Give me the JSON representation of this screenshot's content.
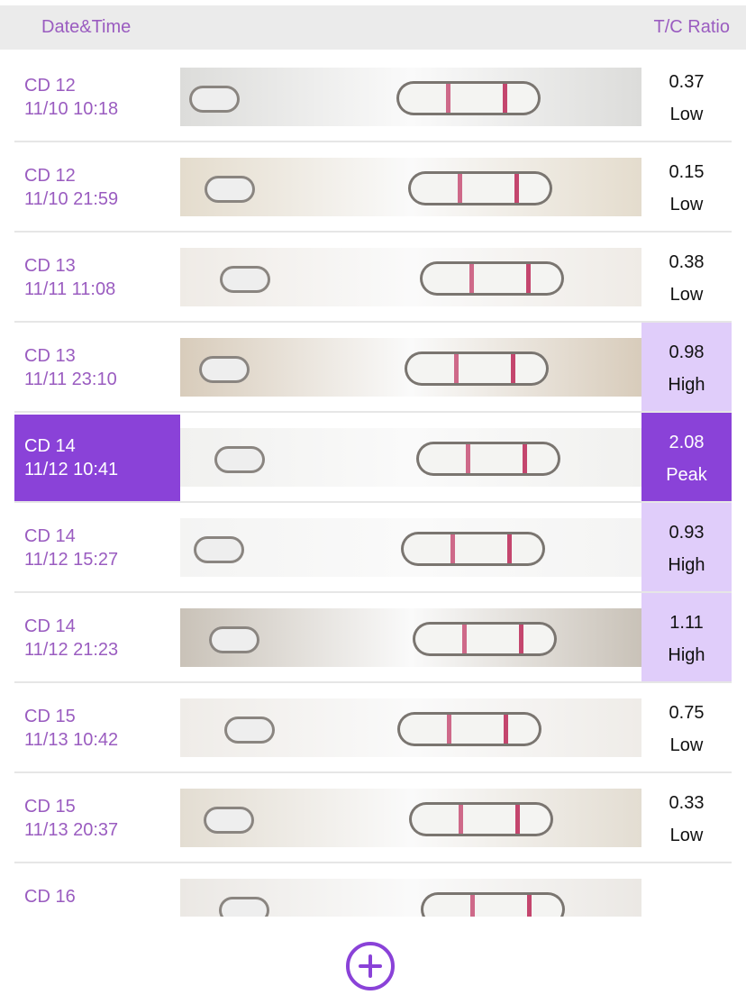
{
  "header": {
    "left": "Date&Time",
    "right": "T/C Ratio"
  },
  "rows": [
    {
      "cd": "CD 12",
      "datetime": "11/10 10:18",
      "ratio": "0.37",
      "level": "Low"
    },
    {
      "cd": "CD 12",
      "datetime": "11/10 21:59",
      "ratio": "0.15",
      "level": "Low"
    },
    {
      "cd": "CD 13",
      "datetime": "11/11 11:08",
      "ratio": "0.38",
      "level": "Low"
    },
    {
      "cd": "CD 13",
      "datetime": "11/11 23:10",
      "ratio": "0.98",
      "level": "High",
      "highlight": "#e0cdfa"
    },
    {
      "cd": "CD 14",
      "datetime": "11/12 10:41",
      "ratio": "2.08",
      "level": "Peak",
      "highlight": "#8a42d8",
      "selected": true
    },
    {
      "cd": "CD 14",
      "datetime": "11/12 15:27",
      "ratio": "0.93",
      "level": "High",
      "highlight": "#e0cdfa"
    },
    {
      "cd": "CD 14",
      "datetime": "11/12 21:23",
      "ratio": "1.11",
      "level": "High",
      "highlight": "#e0cdfa"
    },
    {
      "cd": "CD 15",
      "datetime": "11/13 10:42",
      "ratio": "0.75",
      "level": "Low"
    },
    {
      "cd": "CD 15",
      "datetime": "11/13 20:37",
      "ratio": "0.33",
      "level": "Low"
    },
    {
      "cd": "CD 16"
    }
  ]
}
